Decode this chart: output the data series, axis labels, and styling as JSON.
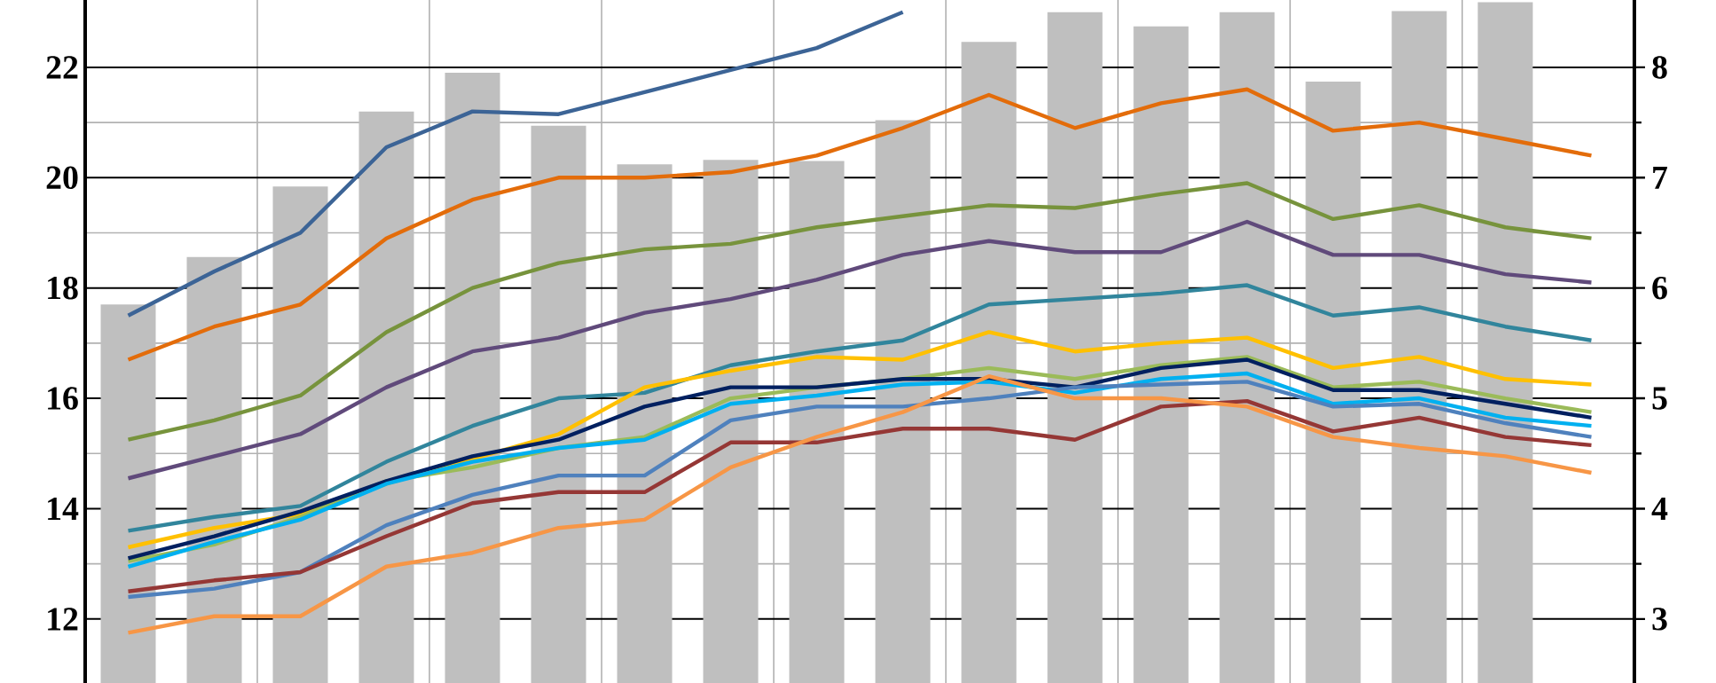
{
  "chart_data": {
    "type": "bar",
    "categories": [
      null,
      null,
      null,
      null,
      null,
      null,
      null,
      null,
      null,
      null,
      null,
      null,
      null,
      null,
      null,
      null,
      null,
      null
    ],
    "series": [
      {
        "axis": "y2",
        "color": "#bfbfbf",
        "values": [
          5.85,
          6.28,
          6.92,
          7.6,
          7.95,
          7.47,
          7.12,
          7.16,
          7.15,
          7.52,
          8.23,
          8.5,
          8.37,
          8.5,
          7.87,
          8.51,
          8.59,
          null
        ]
      },
      {
        "type": "line",
        "color": "#3c6496",
        "values": [
          17.5,
          18.3,
          19.0,
          20.55,
          21.2,
          21.15,
          21.55,
          21.95,
          22.35,
          23.0,
          null,
          null,
          null,
          null,
          null,
          null,
          null,
          null
        ]
      },
      {
        "type": "line",
        "color": "#e36c0a",
        "values": [
          16.7,
          17.3,
          17.7,
          18.9,
          19.6,
          20.0,
          20.0,
          20.1,
          20.4,
          20.9,
          21.5,
          20.9,
          21.35,
          21.6,
          20.85,
          21.0,
          20.7,
          20.4
        ]
      },
      {
        "type": "line",
        "color": "#77933c",
        "values": [
          15.25,
          15.6,
          16.05,
          17.2,
          18.0,
          18.45,
          18.7,
          18.8,
          19.1,
          19.3,
          19.5,
          19.45,
          19.7,
          19.9,
          19.25,
          19.5,
          19.1,
          18.9
        ]
      },
      {
        "type": "line",
        "color": "#604a7b",
        "values": [
          14.55,
          14.95,
          15.35,
          16.2,
          16.85,
          17.1,
          17.55,
          17.8,
          18.15,
          18.6,
          18.85,
          18.65,
          18.65,
          19.2,
          18.6,
          18.6,
          18.25,
          18.1
        ]
      },
      {
        "type": "line",
        "color": "#31859c",
        "values": [
          13.6,
          13.85,
          14.05,
          14.85,
          15.5,
          16.0,
          16.1,
          16.6,
          16.85,
          17.05,
          17.7,
          17.8,
          17.9,
          18.05,
          17.5,
          17.65,
          17.3,
          17.05
        ]
      },
      {
        "type": "line",
        "color": "#ffc000",
        "values": [
          13.3,
          13.65,
          13.9,
          14.45,
          14.9,
          15.35,
          16.2,
          16.5,
          16.75,
          16.7,
          17.2,
          16.85,
          17.0,
          17.1,
          16.55,
          16.75,
          16.35,
          16.25
        ]
      },
      {
        "type": "line",
        "color": "#9bbb59",
        "values": [
          13.05,
          13.35,
          13.85,
          14.5,
          14.75,
          15.1,
          15.3,
          16.0,
          16.2,
          16.35,
          16.55,
          16.35,
          16.6,
          16.75,
          16.2,
          16.3,
          16.0,
          15.75
        ]
      },
      {
        "type": "line",
        "color": "#002060",
        "values": [
          13.1,
          13.5,
          13.95,
          14.5,
          14.95,
          15.25,
          15.85,
          16.2,
          16.2,
          16.35,
          16.35,
          16.2,
          16.55,
          16.7,
          16.15,
          16.15,
          15.9,
          15.65
        ]
      },
      {
        "type": "line",
        "color": "#00b0f0",
        "values": [
          12.95,
          13.4,
          13.8,
          14.45,
          14.85,
          15.1,
          15.25,
          15.9,
          16.05,
          16.25,
          16.3,
          16.1,
          16.35,
          16.45,
          15.9,
          16.0,
          15.65,
          15.5
        ]
      },
      {
        "type": "line",
        "color": "#4f81bd",
        "values": [
          12.4,
          12.55,
          12.85,
          13.7,
          14.25,
          14.6,
          14.6,
          15.6,
          15.85,
          15.85,
          16.0,
          16.2,
          16.25,
          16.3,
          15.85,
          15.9,
          15.55,
          15.3
        ]
      },
      {
        "type": "line",
        "color": "#953735",
        "values": [
          12.5,
          12.7,
          12.85,
          13.5,
          14.1,
          14.3,
          14.3,
          15.2,
          15.2,
          15.45,
          15.45,
          15.25,
          15.85,
          15.95,
          15.4,
          15.65,
          15.3,
          15.15
        ]
      },
      {
        "type": "line",
        "color": "#f79646",
        "values": [
          11.75,
          12.05,
          12.05,
          12.95,
          13.2,
          13.65,
          13.8,
          14.75,
          15.3,
          15.75,
          16.4,
          16.0,
          16.0,
          15.85,
          15.3,
          15.1,
          14.95,
          14.65
        ]
      }
    ],
    "ylim": [
      10.84,
      23.22
    ],
    "yticks": [
      12,
      14,
      16,
      18,
      20,
      22
    ],
    "y2lim": [
      2.42,
      8.61
    ],
    "y2ticks": [
      3,
      4,
      5,
      6,
      7,
      8
    ],
    "tick_labels": "y",
    "grid": true
  }
}
